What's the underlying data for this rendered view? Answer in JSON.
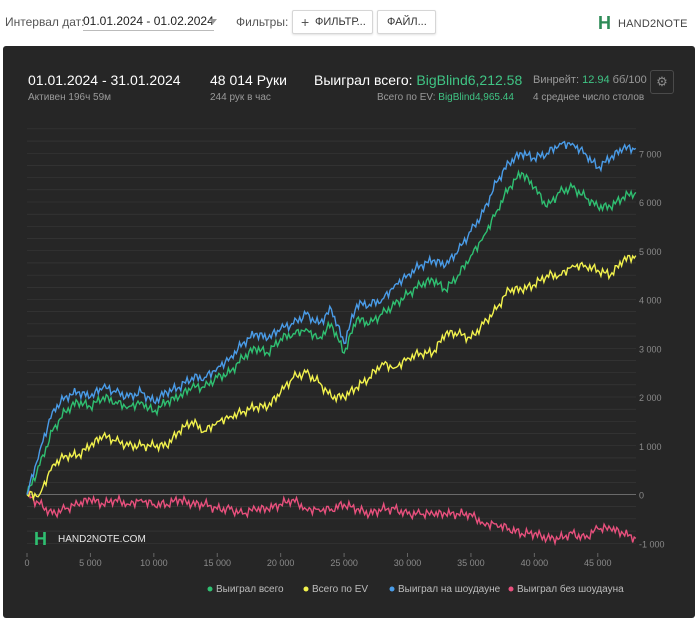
{
  "toolbar": {
    "interval_label": "Интервал дат:",
    "interval_value": "01.01.2024 - 01.02.2024",
    "filters_label": "Фильтры:",
    "filter_button": "ФИЛЬТР...",
    "file_button": "ФАЙЛ...",
    "logo_text": "HAND2NOTE"
  },
  "header": {
    "date_range": "01.01.2024 - 31.01.2024",
    "active": "Активен 196ч 59м",
    "hands": "48 014 Руки",
    "hands_per_hour": "244 рук в час",
    "won_label": "Выиграл всего: ",
    "won_value": "BigBlind6,212.58",
    "ev_label": "Всего по EV: ",
    "ev_value": "BigBlind4,965.44",
    "winrate_label": "Винрейт: ",
    "winrate_value": "12.94",
    "winrate_suffix": " бб/100",
    "avg_label": "4 среднее число столов"
  },
  "watermark": "HAND2NOTE.COM",
  "chart_data": {
    "type": "line",
    "x_ticks": [
      "0",
      "5 000",
      "10 000",
      "15 000",
      "20 000",
      "25 000",
      "30 000",
      "35 000",
      "40 000",
      "45 000"
    ],
    "y_ticks": [
      "-1 000",
      "0",
      "1 000",
      "2 000",
      "3 000",
      "4 000",
      "5 000",
      "6 000",
      "7 000"
    ],
    "xlim": [
      0,
      48014
    ],
    "ylim": [
      -1200,
      7600
    ],
    "grid": true,
    "legend_position": "bottom",
    "colors": {
      "background": "#262626",
      "grid": "#3b3b3b",
      "total": "#2fbf71",
      "ev": "#f2f24d",
      "showdown": "#4a9ce8",
      "non_showdown": "#e8507d"
    },
    "x": [
      0,
      1000,
      2000,
      3000,
      4000,
      5000,
      6000,
      7000,
      8000,
      9000,
      10000,
      11000,
      12000,
      13000,
      14000,
      15000,
      16000,
      17000,
      18000,
      19000,
      20000,
      21000,
      22000,
      23000,
      24000,
      25000,
      26000,
      27000,
      28000,
      29000,
      30000,
      31000,
      32000,
      33000,
      34000,
      35000,
      36000,
      37000,
      38000,
      39000,
      40000,
      41000,
      42000,
      43000,
      44000,
      45000,
      46000,
      47000,
      48000
    ],
    "series": [
      {
        "name": "Выиграл всего",
        "key": "total",
        "values": [
          0,
          600,
          1300,
          1700,
          1900,
          1800,
          2000,
          1900,
          1800,
          1900,
          1700,
          1900,
          2000,
          2200,
          2200,
          2400,
          2500,
          2800,
          3000,
          2900,
          3200,
          3300,
          3400,
          3200,
          3500,
          2900,
          3600,
          3500,
          3700,
          3900,
          4100,
          4300,
          4400,
          4200,
          4500,
          4900,
          5300,
          5800,
          6300,
          6600,
          6300,
          5900,
          6200,
          6300,
          6100,
          5900,
          5900,
          6100,
          6200
        ]
      },
      {
        "name": "Всего по EV",
        "key": "ev",
        "values": [
          0,
          0,
          600,
          800,
          800,
          1000,
          1200,
          1100,
          1000,
          1000,
          1000,
          1000,
          1300,
          1500,
          1300,
          1500,
          1600,
          1700,
          1800,
          1800,
          2100,
          2400,
          2500,
          2300,
          2000,
          2000,
          2200,
          2400,
          2700,
          2600,
          2800,
          2900,
          2900,
          3300,
          3300,
          3200,
          3500,
          3800,
          4200,
          4200,
          4300,
          4500,
          4500,
          4700,
          4700,
          4600,
          4500,
          4800,
          4900
        ]
      },
      {
        "name": "Выиграл на шоудауне",
        "key": "showdown",
        "values": [
          0,
          900,
          1700,
          2000,
          2100,
          2000,
          2200,
          2100,
          2000,
          2100,
          1900,
          2100,
          2200,
          2400,
          2400,
          2600,
          2800,
          3100,
          3300,
          3200,
          3400,
          3500,
          3700,
          3500,
          3800,
          3100,
          3900,
          3900,
          4000,
          4300,
          4500,
          4700,
          4800,
          4700,
          5000,
          5400,
          5800,
          6400,
          6800,
          7000,
          6900,
          7000,
          7200,
          7200,
          7000,
          6700,
          6900,
          7100,
          7100
        ]
      },
      {
        "name": "Выиграл без шоудауна",
        "key": "non_showdown",
        "values": [
          0,
          -200,
          -400,
          -300,
          -200,
          -100,
          -200,
          -100,
          -200,
          -100,
          -200,
          -200,
          -100,
          -200,
          -200,
          -300,
          -300,
          -400,
          -300,
          -300,
          -200,
          -100,
          -300,
          -300,
          -300,
          -200,
          -300,
          -400,
          -300,
          -300,
          -400,
          -400,
          -400,
          -400,
          -400,
          -400,
          -600,
          -600,
          -700,
          -800,
          -800,
          -900,
          -900,
          -800,
          -900,
          -700,
          -700,
          -800,
          -900
        ]
      }
    ]
  }
}
